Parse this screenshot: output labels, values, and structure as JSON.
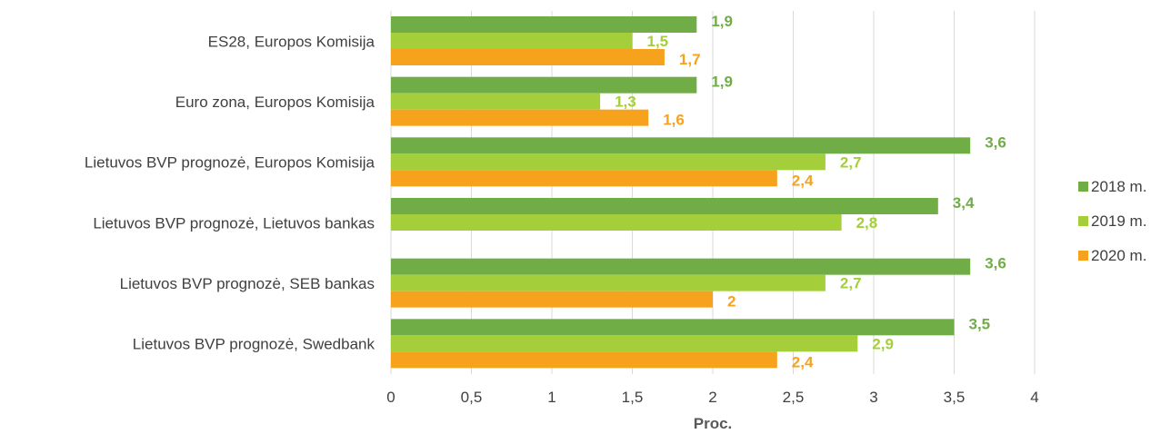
{
  "chart_data": {
    "type": "bar",
    "orientation": "horizontal",
    "categories": [
      "ES28, Europos Komisija",
      "Euro zona, Europos Komisija",
      "Lietuvos BVP prognozė, Europos Komisija",
      "Lietuvos BVP prognozė, Lietuvos bankas",
      "Lietuvos BVP prognozė, SEB bankas",
      "Lietuvos BVP prognozė, Swedbank"
    ],
    "series": [
      {
        "name": "2018 m.",
        "color": "#70ad47",
        "values": [
          1.9,
          1.9,
          3.6,
          3.4,
          3.6,
          3.5
        ],
        "labels": [
          "1,9",
          "1,9",
          "3,6",
          "3,4",
          "3,6",
          "3,5"
        ]
      },
      {
        "name": "2019 m.",
        "color": "#a5cf3a",
        "values": [
          1.5,
          1.3,
          2.7,
          2.8,
          2.7,
          2.9
        ],
        "labels": [
          "1,5",
          "1,3",
          "2,7",
          "2,8",
          "2,7",
          "2,9"
        ]
      },
      {
        "name": "2020 m.",
        "color": "#f7a21c",
        "values": [
          1.7,
          1.6,
          2.4,
          null,
          2,
          2.4
        ],
        "labels": [
          "1,7",
          "1,6",
          "2,4",
          null,
          "2",
          "2,4"
        ]
      }
    ],
    "xlabel": "Proc.",
    "ylabel": "",
    "xlim": [
      0,
      4
    ],
    "xticks": [
      "0",
      "0,5",
      "1",
      "1,5",
      "2",
      "2,5",
      "3",
      "3,5",
      "4"
    ],
    "grid": true,
    "legend_position": "right"
  }
}
